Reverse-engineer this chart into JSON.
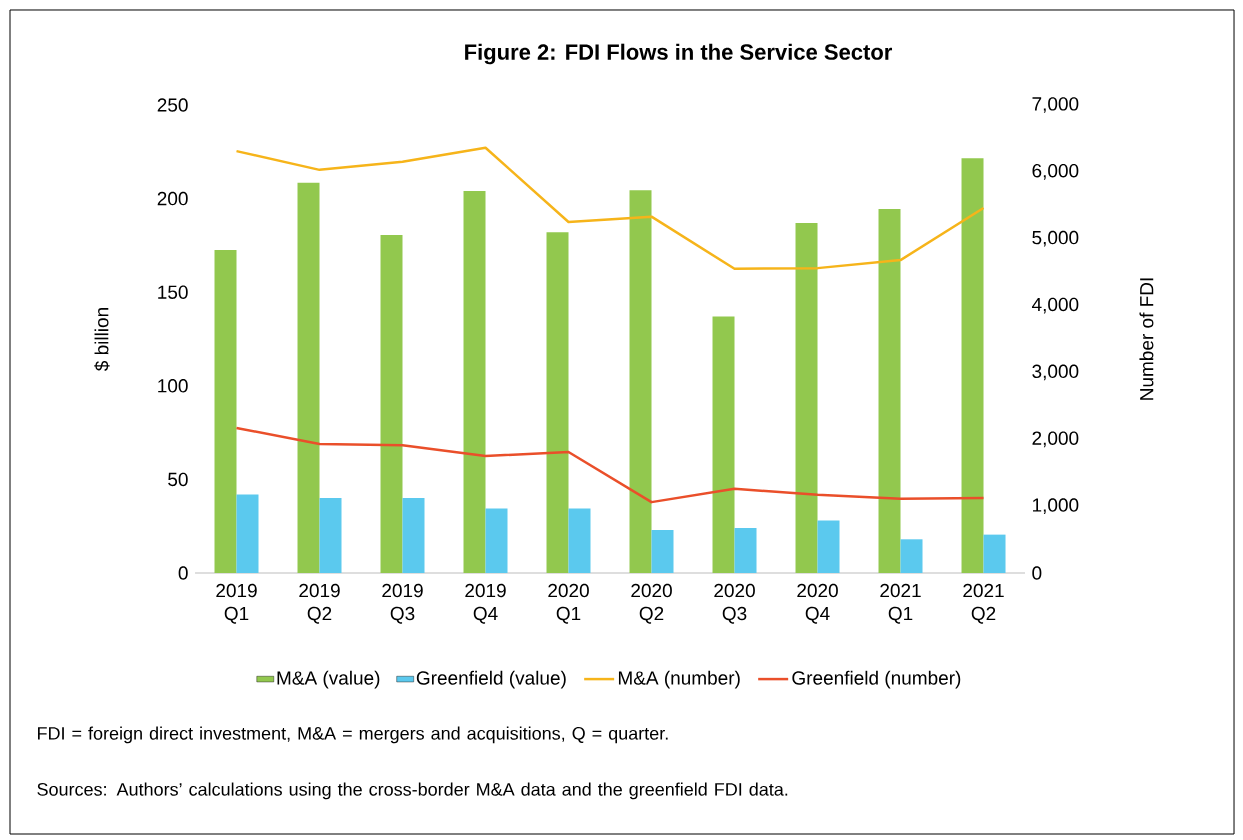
{
  "chart_data": {
    "type": "bar",
    "title": "Figure 2: FDI Flows in the Service Sector",
    "ylabel": "$ billion",
    "y2label": "Number of FDI",
    "categories": [
      "2019 Q1",
      "2019 Q2",
      "2019 Q3",
      "2019 Q4",
      "2020 Q1",
      "2020 Q2",
      "2020 Q3",
      "2020 Q4",
      "2021 Q1",
      "2021 Q2"
    ],
    "series": [
      {
        "name": "M&A (value)",
        "color": "#92c84e",
        "values": [
          172.5,
          208.5,
          180.5,
          204,
          182,
          204.5,
          137,
          187,
          194.5,
          221.5
        ]
      },
      {
        "name": "Greenfield (value)",
        "color": "#5bc9ee",
        "values": [
          42,
          40,
          40,
          34.5,
          34.5,
          23,
          24,
          28,
          18,
          20.5
        ]
      },
      {
        "name": "M&A (number)",
        "type": "line",
        "axis": "y2",
        "color": "#f6b41a",
        "values": [
          6310,
          6030,
          6150,
          6360,
          5250,
          5330,
          4550,
          4560,
          4680,
          5460
        ]
      },
      {
        "name": "Greenfield (number)",
        "type": "line",
        "axis": "y2",
        "color": "#ea4f2a",
        "values": [
          2170,
          1930,
          1910,
          1750,
          1810,
          1060,
          1260,
          1170,
          1110,
          1120
        ]
      }
    ],
    "ylim": [
      0,
      250
    ],
    "yticks": [
      0,
      50,
      100,
      150,
      200,
      250
    ],
    "y2lim": [
      0,
      7000
    ],
    "y2ticks": [
      {
        "value": 0,
        "label": "0"
      },
      {
        "value": 1000,
        "label": "1,000"
      },
      {
        "value": 2000,
        "label": "2,000"
      },
      {
        "value": 3000,
        "label": "3,000"
      },
      {
        "value": 4000,
        "label": "4,000"
      },
      {
        "value": 5000,
        "label": "5,000"
      },
      {
        "value": 6000,
        "label": "6,000"
      },
      {
        "value": 7000,
        "label": "7,000"
      }
    ],
    "legend": "bottom",
    "annotations": [
      "FDI = foreign direct investment, M&A = mergers and acquisitions, Q = quarter.",
      "Sources: Authors’ calculations using the cross-border M&A data and the greenfield FDI data."
    ]
  }
}
